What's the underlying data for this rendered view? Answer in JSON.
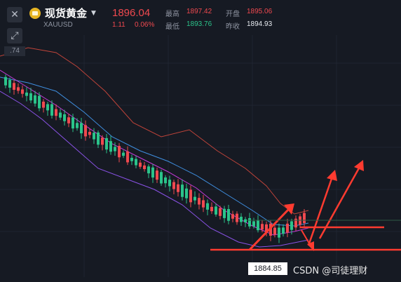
{
  "header": {
    "symbol_name": "现货黄金",
    "symbol_code": "XAUUSD",
    "last_price": "1896.04",
    "change": "1.11",
    "change_pct": "0.06%",
    "close_icon": "close-icon",
    "fullscreen_icon": "fullscreen-icon",
    "coin_icon": "gold-coin-icon",
    "dropdown_icon": "chevron-down-icon"
  },
  "quote": {
    "high_label": "最高",
    "high_value": "1897.42",
    "open_label": "开盘",
    "open_value": "1895.06",
    "low_label": "最低",
    "low_value": "1893.76",
    "prev_close_label": "昨收",
    "prev_close_value": "1894.93"
  },
  "axis": {
    "left_tag": ".74"
  },
  "crosshair": {
    "price_label": "1884.85"
  },
  "watermark": "CSDN @司徒理财",
  "colors": {
    "background": "#161a23",
    "up": "#f0494f",
    "down": "#2bc38a",
    "bollinger_upper": "#c0443a",
    "ma_blue": "#3f8fe0",
    "ma_magenta": "#c43ad8",
    "bollinger_lower": "#8a52e6",
    "annotation": "#ff3b30"
  }
}
